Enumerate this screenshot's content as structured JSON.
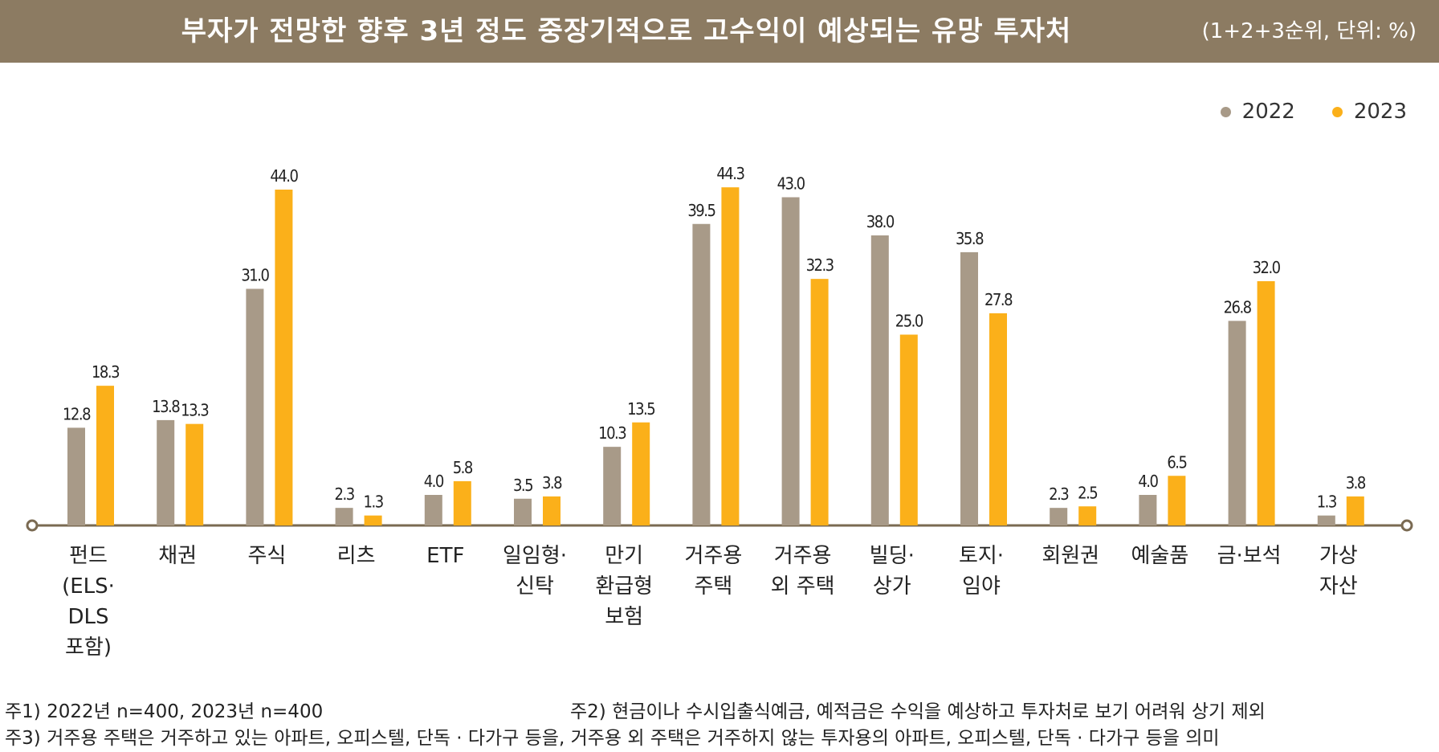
{
  "header": {
    "title": "부자가 전망한 향후 3년 정도 중장기적으로 고수익이 예상되는 유망 투자처",
    "unit_note": "(1+2+3순위, 단위:  %)"
  },
  "colors": {
    "header_bg": "#8c7b62",
    "series_2022": "#a89a88",
    "series_2023": "#fbb01a",
    "axis": "#7a6a52"
  },
  "chart_data": {
    "type": "bar",
    "categories": [
      [
        "펀드",
        "(ELS·",
        "DLS",
        "포함)"
      ],
      [
        "채권"
      ],
      [
        "주식"
      ],
      [
        "리츠"
      ],
      [
        "ETF"
      ],
      [
        "일임형·",
        "신탁"
      ],
      [
        "만기",
        "환급형",
        "보험"
      ],
      [
        "거주용",
        "주택"
      ],
      [
        "거주용",
        "외 주택"
      ],
      [
        "빌딩·",
        "상가"
      ],
      [
        "토지·",
        "임야"
      ],
      [
        "회원권"
      ],
      [
        "예술품"
      ],
      [
        "금·보석"
      ],
      [
        "가상",
        "자산"
      ]
    ],
    "series": [
      {
        "name": "2022",
        "values": [
          12.8,
          13.8,
          31.0,
          2.3,
          4.0,
          3.5,
          10.3,
          39.5,
          43.0,
          38.0,
          35.8,
          2.3,
          4.0,
          26.8,
          1.3
        ]
      },
      {
        "name": "2023",
        "values": [
          18.3,
          13.3,
          44.0,
          1.3,
          5.8,
          3.8,
          13.5,
          44.3,
          32.3,
          25.0,
          27.8,
          2.5,
          6.5,
          32.0,
          3.8
        ]
      }
    ],
    "value_labels": [
      [
        "12.8",
        "13.8",
        "31.0",
        "2.3",
        "4.0",
        "3.5",
        "10.3",
        "39.5",
        "43.0",
        "38.0",
        "35.8",
        "2.3",
        "4.0",
        "26.8",
        "1.3"
      ],
      [
        "18.3",
        "13.3",
        "44.0",
        "1.3",
        "5.8",
        "3.8",
        "13.5",
        "44.3",
        "32.3",
        "25.0",
        "27.8",
        "2.5",
        "6.5",
        "32.0",
        "3.8"
      ]
    ],
    "ylim": [
      0,
      48
    ],
    "legend_position": "top-right",
    "grid": false
  },
  "notes": {
    "note1": "주1) 2022년 n=400, 2023년 n=400",
    "note2": "주2) 현금이나 수시입출식예금, 예적금은 수익을 예상하고 투자처로 보기 어려워 상기 제외",
    "note3": "주3) 거주용 주택은 거주하고 있는 아파트, 오피스텔, 단독 · 다가구 등을, 거주용 외 주택은 거주하지 않는 투자용의 아파트, 오피스텔, 단독 · 다가구 등을 의미"
  }
}
